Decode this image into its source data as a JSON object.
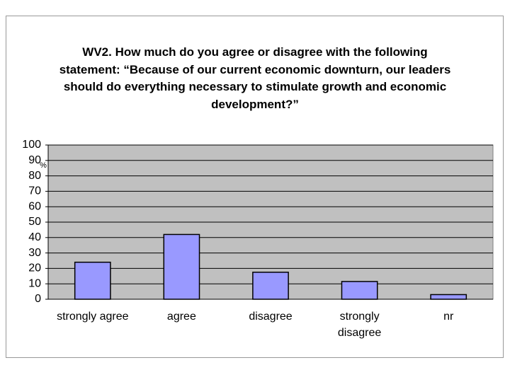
{
  "chart_data": {
    "type": "bar",
    "title": "WV2. How much do you agree or disagree with the following statement: “Because of our current economic downturn, our leaders should do everything necessary to stimulate growth and economic development?”",
    "y_label": "%",
    "categories": [
      "strongly agree",
      "agree",
      "disagree",
      "strongly disagree",
      "nr"
    ],
    "values": [
      24,
      42,
      17.5,
      11.5,
      3
    ],
    "color": "#9999ff",
    "ylim": [
      0,
      100
    ],
    "yticks": [
      0,
      10,
      20,
      30,
      40,
      50,
      60,
      70,
      80,
      90,
      100
    ],
    "grid": true
  }
}
